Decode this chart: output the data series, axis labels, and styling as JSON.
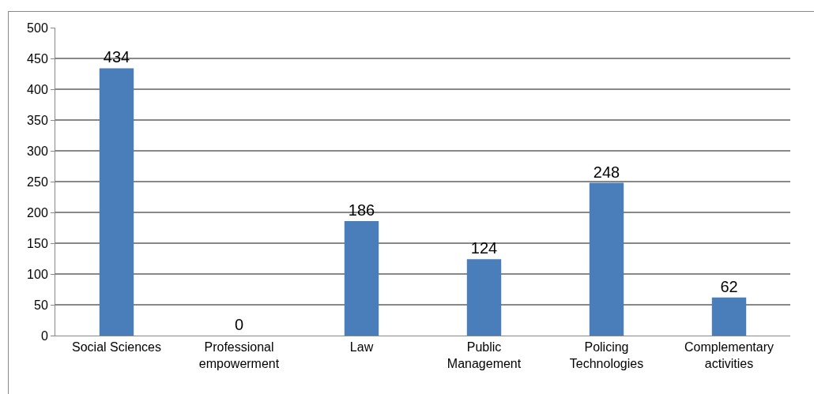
{
  "chart_data": {
    "type": "bar",
    "categories": [
      "Social Sciences",
      "Professional empowerment",
      "Law",
      "Public Management",
      "Policing Technologies",
      "Complementary activities"
    ],
    "values": [
      434,
      0,
      186,
      124,
      248,
      62
    ],
    "color": "#4a7ebb",
    "ylim": [
      0,
      500
    ],
    "yticks": [
      0,
      50,
      100,
      150,
      200,
      250,
      300,
      350,
      400,
      450,
      500
    ],
    "grid": "y",
    "legend": false,
    "data_labels": true
  }
}
